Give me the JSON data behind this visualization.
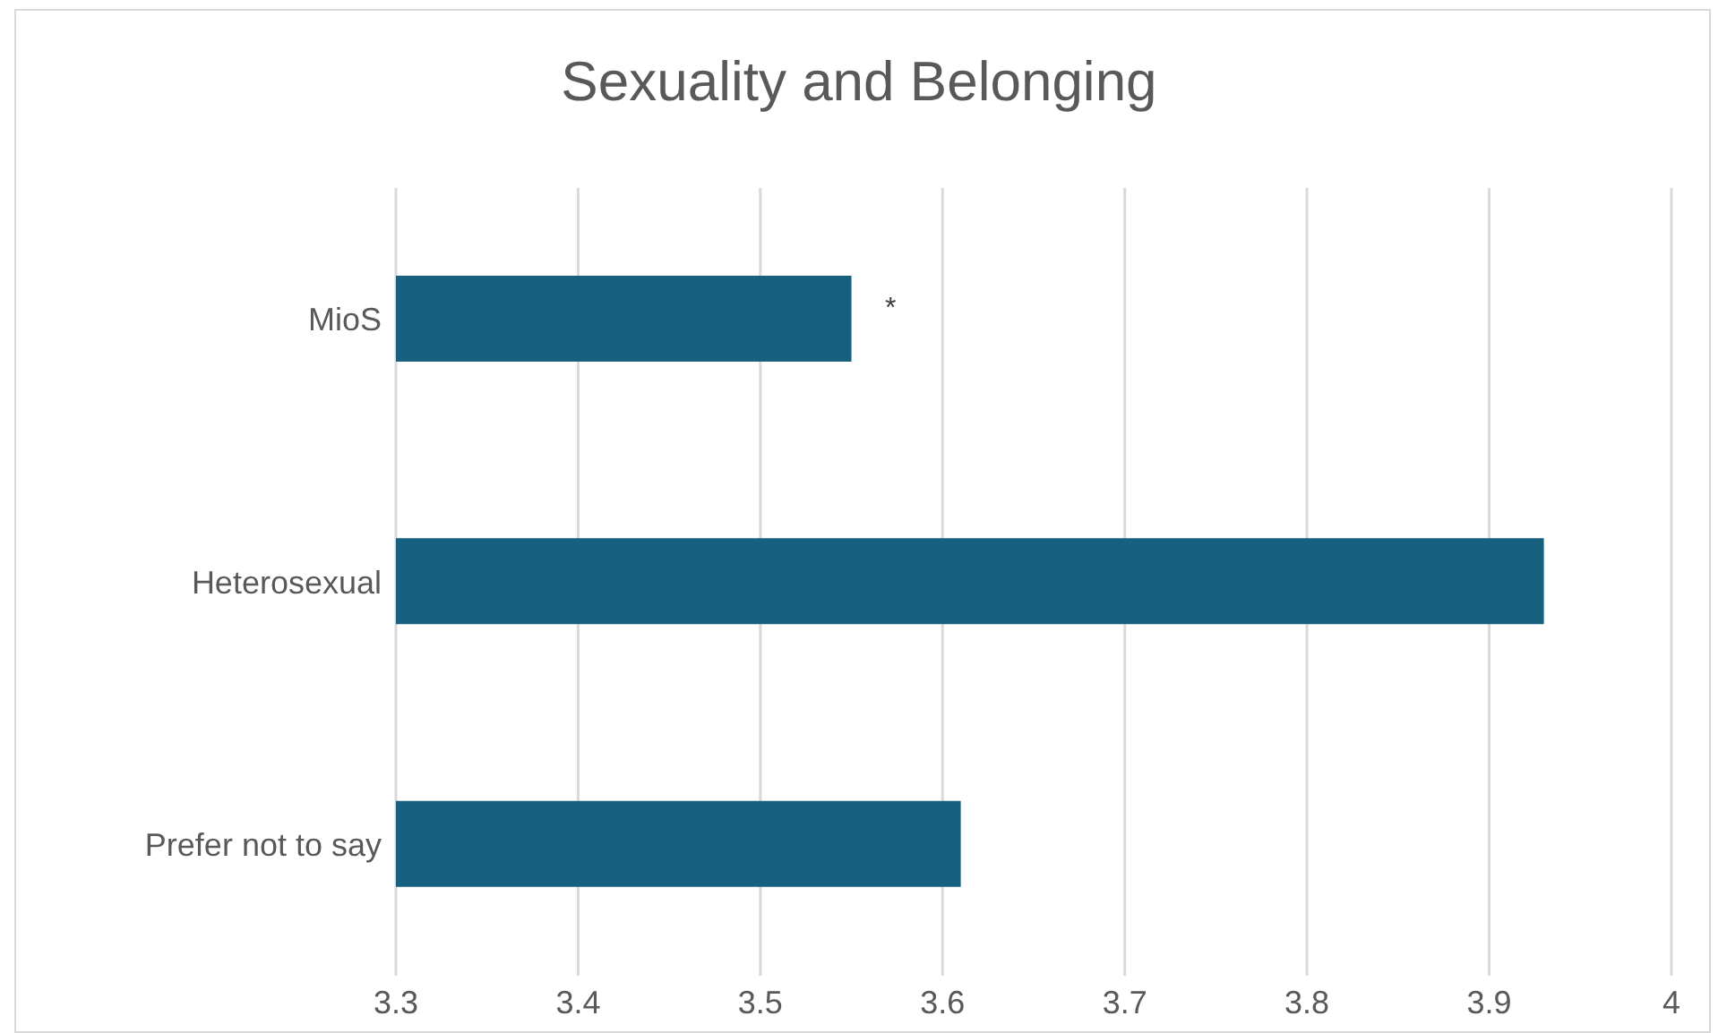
{
  "chart_data": {
    "type": "bar",
    "orientation": "horizontal",
    "title": "Sexuality and Belonging",
    "categories": [
      "MioS",
      "Heterosexual",
      "Prefer not to say"
    ],
    "values": [
      3.55,
      3.93,
      3.61
    ],
    "color": "#17607f",
    "xlim": [
      3.3,
      4
    ],
    "xticks": [
      3.3,
      3.4,
      3.5,
      3.6,
      3.7,
      3.8,
      3.9,
      4
    ],
    "grid": "x",
    "annotations": [
      "*"
    ]
  }
}
